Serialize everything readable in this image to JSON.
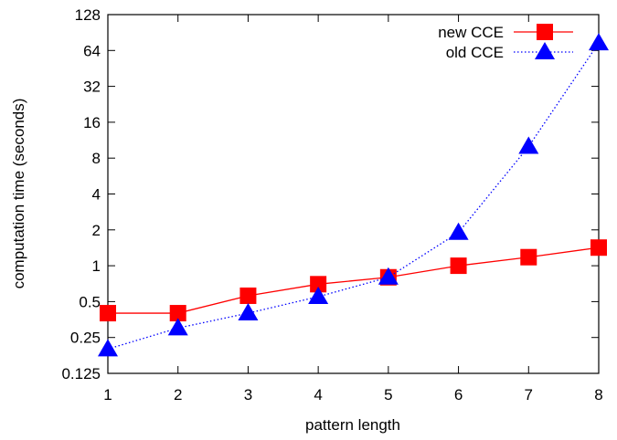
{
  "chart_data": {
    "type": "line",
    "xlabel": "pattern length",
    "ylabel": "computation time (seconds)",
    "x": [
      1,
      2,
      3,
      4,
      5,
      6,
      7,
      8
    ],
    "xlim": [
      1,
      8
    ],
    "ylim": [
      0.125,
      128
    ],
    "yscale": "log2",
    "yticks": [
      "0.125",
      "0.25",
      "0.5",
      "1",
      "2",
      "4",
      "8",
      "16",
      "32",
      "64",
      "128"
    ],
    "xticks": [
      "1",
      "2",
      "3",
      "4",
      "5",
      "6",
      "7",
      "8"
    ],
    "legend_position": "top-right",
    "series": [
      {
        "name": "new CCE",
        "color": "#ff0000",
        "marker": "square",
        "line": "solid",
        "values": [
          0.4,
          0.4,
          0.56,
          0.7,
          0.8,
          1.0,
          1.18,
          1.42
        ]
      },
      {
        "name": "old CCE",
        "color": "#0000ff",
        "marker": "triangle",
        "line": "dotted",
        "values": [
          0.2,
          0.3,
          0.4,
          0.55,
          0.8,
          1.9,
          10,
          74
        ]
      }
    ]
  }
}
